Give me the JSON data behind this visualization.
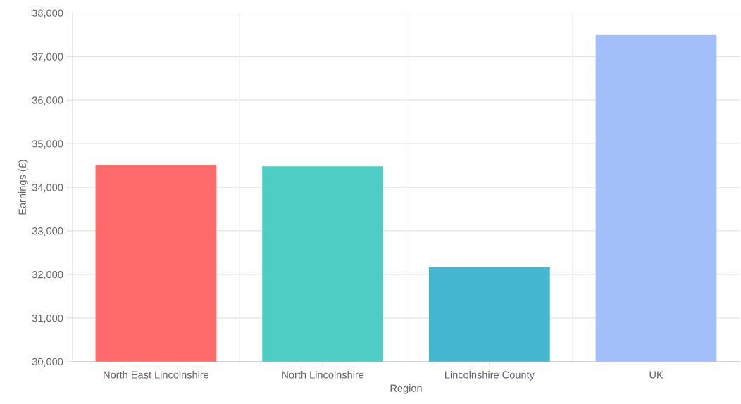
{
  "chart_data": {
    "type": "bar",
    "xlabel": "Region",
    "ylabel": "Earnings (£)",
    "categories": [
      "North East Lincolnshire",
      "North Lincolnshire",
      "Lincolnshire County",
      "UK"
    ],
    "values": [
      34500,
      34470,
      32150,
      37480
    ],
    "colors": [
      "#ff6b6b",
      "#4ecdc4",
      "#45b7d1",
      "#a3bff9"
    ],
    "ylim": [
      30000,
      38000
    ],
    "yticks": [
      {
        "value": 30000,
        "label": "30,000"
      },
      {
        "value": 31000,
        "label": "31,000"
      },
      {
        "value": 32000,
        "label": "32,000"
      },
      {
        "value": 33000,
        "label": "33,000"
      },
      {
        "value": 34000,
        "label": "34,000"
      },
      {
        "value": 35000,
        "label": "35,000"
      },
      {
        "value": 36000,
        "label": "36,000"
      },
      {
        "value": 37000,
        "label": "37,000"
      },
      {
        "value": 38000,
        "label": "38,000"
      }
    ],
    "grid": true
  }
}
